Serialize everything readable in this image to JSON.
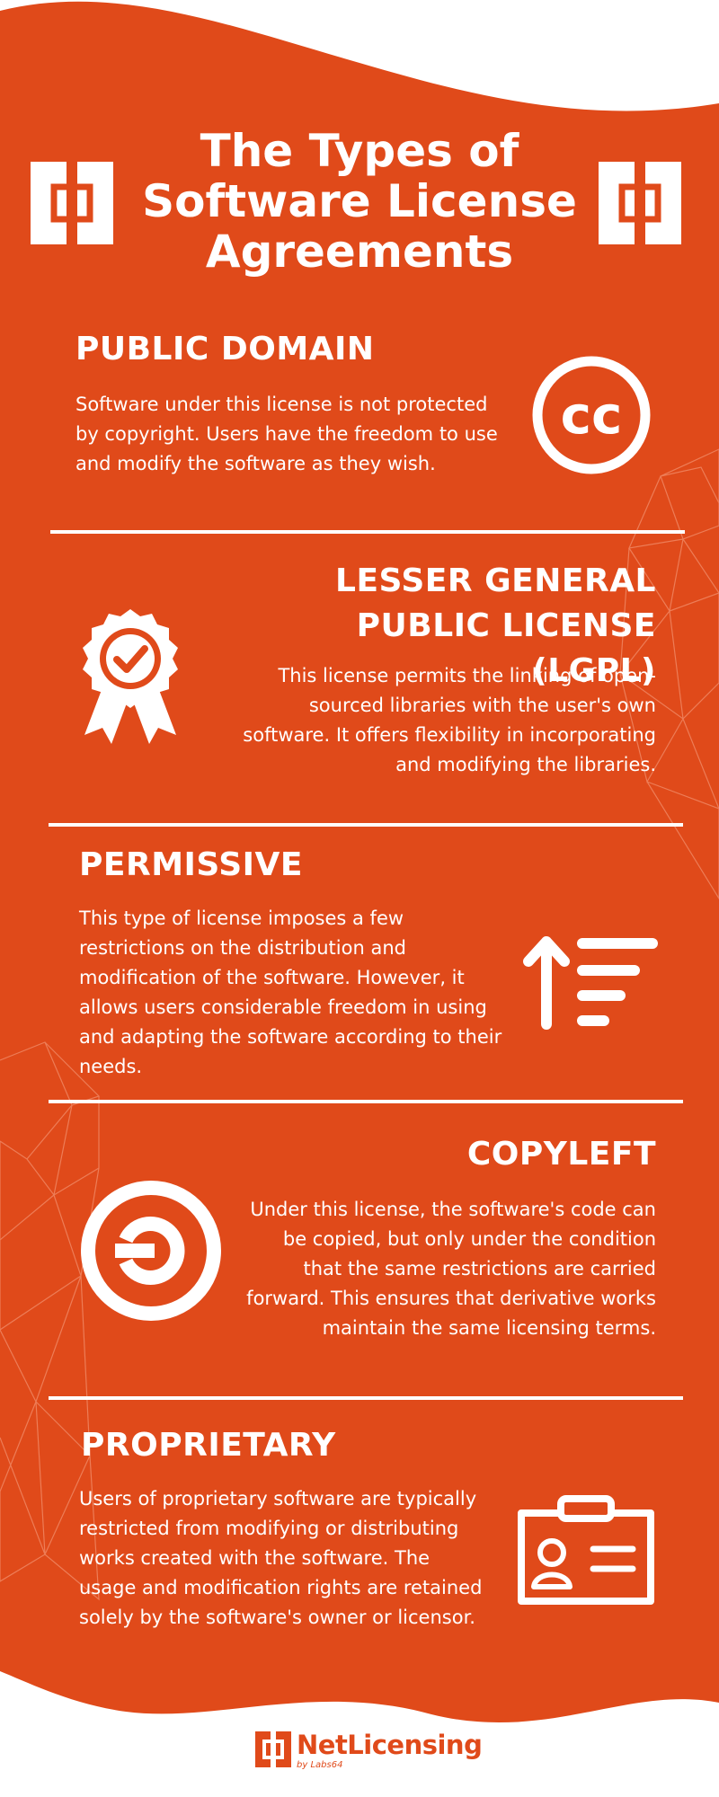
{
  "colors": {
    "background": "#e04a1a",
    "text": "#ffffff",
    "page": "#ffffff",
    "mesh": "#f08a66"
  },
  "header": {
    "title_lines": [
      "The Types of",
      "Software License",
      "Agreements"
    ],
    "logo_icon": "bracket-square-icon"
  },
  "sections": [
    {
      "heading_lines": [
        "PUBLIC DOMAIN"
      ],
      "text_lines": [
        "Software under this license is not protected",
        "by copyright. Users have the freedom to use",
        "and modify the software as they wish."
      ],
      "icon": "creative-commons-icon",
      "icon_text": "cc"
    },
    {
      "heading_lines": [
        "LESSER GENERAL",
        "PUBLIC LICENSE (LGPL)"
      ],
      "text_lines": [
        "This license permits the linking of open-",
        "sourced libraries with the user's own",
        "software. It offers flexibility in incorporating",
        "and modifying the libraries."
      ],
      "icon": "award-badge-icon"
    },
    {
      "heading_lines": [
        "PERMISSIVE"
      ],
      "text_lines": [
        "This type of license imposes a few",
        "restrictions on the distribution and",
        "modification of the software. However, it",
        "allows users considerable freedom in using",
        "and adapting the software according to their",
        "needs."
      ],
      "icon": "sort-ascending-icon"
    },
    {
      "heading_lines": [
        "COPYLEFT"
      ],
      "text_lines": [
        "Under this license, the software's code can",
        "be copied, but only under the condition",
        "that the same restrictions are carried",
        "forward. This ensures that derivative works",
        "maintain the same licensing terms."
      ],
      "icon": "copyleft-icon"
    },
    {
      "heading_lines": [
        "PROPRIETARY"
      ],
      "text_lines": [
        "Users of proprietary software are typically",
        "restricted from modifying or distributing",
        "works created with the software. The",
        "usage and modification rights are retained",
        "solely by the software's owner or licensor."
      ],
      "icon": "id-badge-icon"
    }
  ],
  "footer": {
    "brand": "NetLicensing",
    "byline": "by Labs64",
    "logo_icon": "netlicensing-logo-icon"
  }
}
